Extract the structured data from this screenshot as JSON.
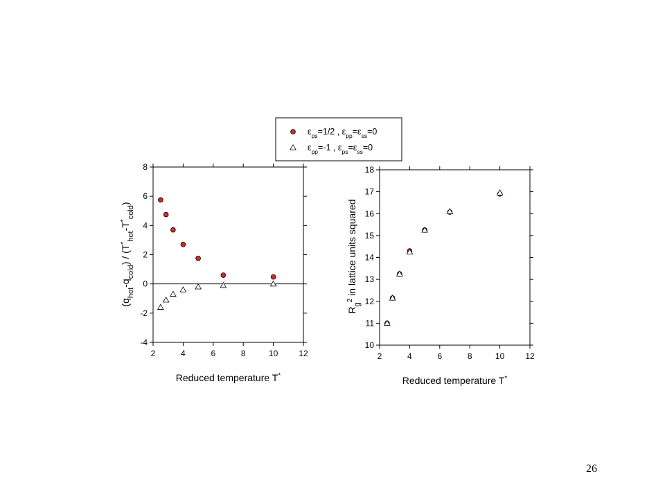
{
  "legend": {
    "entries": [
      {
        "marker": "filled-circle",
        "color": "#d42a2a",
        "text": "εps=1/2 ,   εpp=εss=0",
        "parts": [
          "ε",
          "ps",
          "=1/2 ,   ",
          "ε",
          "pp",
          "=",
          "ε",
          "ss",
          "=0"
        ]
      },
      {
        "marker": "open-triangle",
        "color": "#ffffff",
        "text": "εpp=-1 ,   εps=εss=0",
        "parts": [
          "ε",
          "pp",
          "=-1 ,   ",
          "ε",
          "ps",
          "=",
          "ε",
          "ss",
          "=0"
        ]
      }
    ]
  },
  "chart_data": [
    {
      "type": "scatter",
      "xlabel": "Reduced temperature T*",
      "ylabel": "(qhot-qcold) / (T*hot-T*cold)",
      "xlim": [
        2,
        12
      ],
      "ylim": [
        -4,
        8
      ],
      "xticks": [
        2,
        4,
        6,
        8,
        10,
        12
      ],
      "yticks": [
        -4,
        -2,
        0,
        2,
        4,
        6,
        8
      ],
      "zero_line": true,
      "series": [
        {
          "marker": "filled-circle",
          "color": "#d42a2a",
          "x": [
            2.5,
            2.86,
            3.33,
            4.0,
            5.0,
            6.67,
            10.0
          ],
          "y": [
            5.75,
            4.75,
            3.7,
            2.7,
            1.75,
            0.6,
            0.48
          ]
        },
        {
          "marker": "open-triangle",
          "color": "#ffffff",
          "x": [
            2.5,
            2.86,
            3.33,
            4.0,
            5.0,
            6.67,
            10.0
          ],
          "y": [
            -1.6,
            -1.1,
            -0.7,
            -0.4,
            -0.2,
            -0.1,
            0.0
          ]
        }
      ]
    },
    {
      "type": "scatter",
      "xlabel": "Reduced temperature T*",
      "ylabel": "Rg2 in lattice units squared",
      "xlim": [
        2,
        12
      ],
      "ylim": [
        10,
        18
      ],
      "xticks": [
        2,
        4,
        6,
        8,
        10,
        12
      ],
      "yticks": [
        10,
        11,
        12,
        13,
        14,
        15,
        16,
        17,
        18
      ],
      "zero_line": false,
      "series": [
        {
          "marker": "filled-circle",
          "color": "#d42a2a",
          "x": [
            2.5,
            2.86,
            3.33,
            4.0,
            5.0,
            6.67,
            10.0
          ],
          "y": [
            11.0,
            12.15,
            13.25,
            14.3,
            15.25,
            16.07,
            16.9
          ]
        },
        {
          "marker": "open-triangle",
          "color": "#ffffff",
          "x": [
            2.5,
            2.86,
            3.33,
            4.0,
            5.0,
            6.67,
            10.0
          ],
          "y": [
            11.0,
            12.15,
            13.25,
            14.25,
            15.25,
            16.1,
            16.95
          ]
        }
      ]
    }
  ],
  "slide_number": "26"
}
